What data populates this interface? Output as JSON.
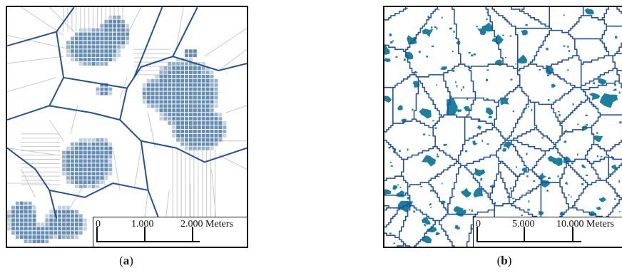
{
  "panels": [
    {
      "id": "a",
      "caption_open": "(",
      "caption_letter": "a",
      "caption_close": ")",
      "scale_labels": [
        "0",
        "1.000",
        "2.000 Meters"
      ]
    },
    {
      "id": "b",
      "caption_open": "(",
      "caption_letter": "b",
      "caption_close": ")",
      "scale_labels": [
        "0",
        "5.000",
        "10.000 Meters"
      ]
    }
  ],
  "colors": {
    "boundary_line": "#1f4fa3",
    "grid_line": "#c8c8c8",
    "cluster_dark": "#4a78a8",
    "cluster_light": "#b9c9da",
    "patch_fill": "#1b7f9e",
    "frame": "#111111"
  }
}
